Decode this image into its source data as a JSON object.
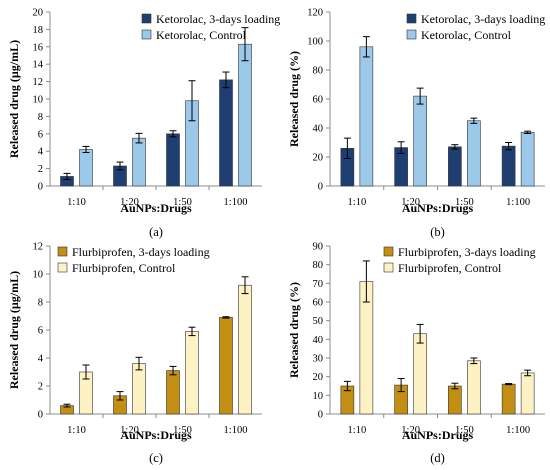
{
  "colors": {
    "ketorolac_loaded": "#1f3f73",
    "ketorolac_control": "#9cc8ea",
    "flurbiprofen_loaded": "#c38f13",
    "flurbiprofen_control": "#fdf2c4",
    "error_bar": "#000000",
    "axis": "#8c8c8c"
  },
  "chart_data": [
    {
      "type": "bar",
      "panel_label": "(a)",
      "title": "",
      "xlabel": "AuNPs:Drugs",
      "ylabel": "Released drug (µg/mL)",
      "categories": [
        "1:10",
        "1:20",
        "1:50",
        "1:100"
      ],
      "ylim": [
        0,
        20
      ],
      "yticks": [
        0,
        2,
        4,
        6,
        8,
        10,
        12,
        14,
        16,
        18,
        20
      ],
      "grid": false,
      "legend_position": "top-right",
      "series": [
        {
          "name": "Ketorolac, 3-days loading",
          "color": "#1f3f73",
          "values": [
            1.1,
            2.3,
            6.0,
            12.2
          ],
          "errors": [
            0.35,
            0.45,
            0.35,
            0.9
          ]
        },
        {
          "name": "Ketorolac, Control",
          "color": "#9cc8ea",
          "values": [
            4.2,
            5.5,
            9.8,
            16.3
          ],
          "errors": [
            0.35,
            0.55,
            2.3,
            1.9
          ]
        }
      ]
    },
    {
      "type": "bar",
      "panel_label": "(b)",
      "title": "",
      "xlabel": "AuNPs:Drugs",
      "ylabel": "Released drug (%)",
      "categories": [
        "1:10",
        "1:20",
        "1:50",
        "1:100"
      ],
      "ylim": [
        0,
        120
      ],
      "yticks": [
        0,
        20,
        40,
        60,
        80,
        100,
        120
      ],
      "grid": false,
      "legend_position": "top-right",
      "series": [
        {
          "name": "Ketorolac, 3-days loading",
          "color": "#1f3f73",
          "values": [
            26,
            26.5,
            27,
            27.5
          ],
          "errors": [
            7,
            4,
            1.5,
            2.5
          ]
        },
        {
          "name": "Ketorolac, Control",
          "color": "#9cc8ea",
          "values": [
            96,
            62,
            45,
            37
          ],
          "errors": [
            7,
            5.5,
            1.8,
            0.8
          ]
        }
      ]
    },
    {
      "type": "bar",
      "panel_label": "(c)",
      "title": "",
      "xlabel": "AuNPs:Drugs",
      "ylabel": "Released drug (µg/mL)",
      "categories": [
        "1:10",
        "1:20",
        "1:50",
        "1:100"
      ],
      "ylim": [
        0,
        12
      ],
      "yticks": [
        0,
        2,
        4,
        6,
        8,
        10,
        12
      ],
      "grid": false,
      "legend_position": "top-left",
      "series": [
        {
          "name": "Flurbiprofen, 3-days loading",
          "color": "#c38f13",
          "values": [
            0.6,
            1.3,
            3.1,
            6.9
          ],
          "errors": [
            0.1,
            0.3,
            0.3,
            0.05
          ]
        },
        {
          "name": "Flurbiprofen, Control",
          "color": "#fdf2c4",
          "values": [
            3.0,
            3.6,
            5.9,
            9.2
          ],
          "errors": [
            0.5,
            0.45,
            0.3,
            0.6
          ]
        }
      ]
    },
    {
      "type": "bar",
      "panel_label": "(d)",
      "title": "",
      "xlabel": "AuNPs:Drugs",
      "ylabel": "Released drug (%)",
      "categories": [
        "1:10",
        "1:20",
        "1:50",
        "1:100"
      ],
      "ylim": [
        0,
        90
      ],
      "yticks": [
        0,
        10,
        20,
        30,
        40,
        50,
        60,
        70,
        80,
        90
      ],
      "grid": false,
      "legend_position": "top-right",
      "series": [
        {
          "name": "Flurbiprofen, 3-days loading",
          "color": "#c38f13",
          "values": [
            15,
            15.5,
            15,
            16
          ],
          "errors": [
            2.5,
            3.5,
            1.5,
            0.3
          ]
        },
        {
          "name": "Flurbiprofen, Control",
          "color": "#fdf2c4",
          "values": [
            71,
            43,
            28.5,
            22
          ],
          "errors": [
            11,
            5,
            1.5,
            1.5
          ]
        }
      ]
    }
  ]
}
